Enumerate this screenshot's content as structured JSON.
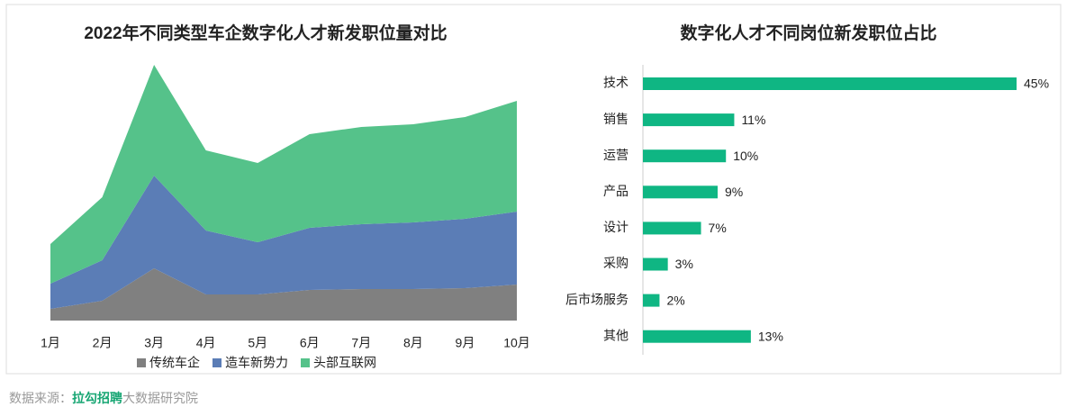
{
  "chart_data": [
    {
      "type": "area",
      "title": "2022年不同类型车企数字化人才新发职位量对比",
      "categories": [
        "1月",
        "2月",
        "3月",
        "4月",
        "5月",
        "6月",
        "7月",
        "8月",
        "9月",
        "10月"
      ],
      "series": [
        {
          "name": "传统车企",
          "color": "#808080",
          "values": [
            13,
            22,
            58,
            29,
            29,
            34,
            35,
            35,
            36,
            40
          ]
        },
        {
          "name": "造车新势力",
          "color": "#5b7db6",
          "values": [
            28,
            45,
            103,
            71,
            58,
            69,
            72,
            74,
            77,
            81
          ]
        },
        {
          "name": "头部互联网",
          "color": "#55c28a",
          "values": [
            44,
            70,
            123,
            89,
            88,
            104,
            108,
            109,
            113,
            123
          ]
        }
      ],
      "ylim": [
        0,
        300
      ],
      "stacked": true
    },
    {
      "type": "hbar",
      "title": "数字化人才不同岗位新发职位占比",
      "categories": [
        "技术",
        "销售",
        "运营",
        "产品",
        "设计",
        "采购",
        "后市场服务",
        "其他"
      ],
      "values": [
        45,
        11,
        10,
        9,
        7,
        3,
        2,
        13
      ],
      "value_labels": [
        "45%",
        "11%",
        "10%",
        "9%",
        "7%",
        "3%",
        "2%",
        "13%"
      ],
      "color": "#0fb683",
      "xlim": [
        0,
        45
      ]
    }
  ],
  "footer": {
    "prefix": "数据来源：",
    "brand": "拉勾招聘",
    "suffix": "大数据研究院"
  }
}
